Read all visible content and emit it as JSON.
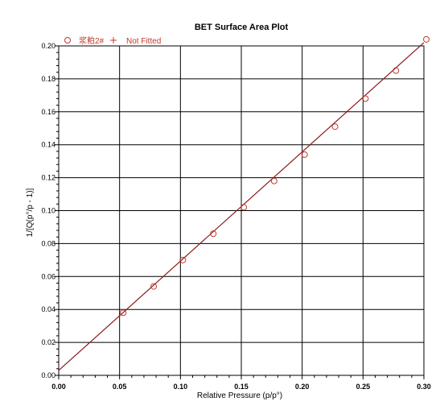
{
  "chart_data": {
    "type": "scatter",
    "title": "BET Surface Area Plot",
    "xlabel": "Relative Pressure (p/p°)",
    "ylabel": "1/[Q(p°/p - 1)]",
    "xlim": [
      0.0,
      0.3
    ],
    "ylim": [
      0.0,
      0.2
    ],
    "xticks": [
      "0.00",
      "0.05",
      "0.10",
      "0.15",
      "0.20",
      "0.25",
      "0.30"
    ],
    "yticks": [
      "0.00",
      "0.02",
      "0.04",
      "0.06",
      "0.08",
      "0.10",
      "0.12",
      "0.14",
      "0.16",
      "0.18",
      "0.20"
    ],
    "grid": true,
    "legend": {
      "placement": "top-left",
      "entries": [
        {
          "name": "浆粕2#",
          "marker": "circle",
          "color": "#c0392b"
        },
        {
          "name": "Not Fitted",
          "marker": "plus",
          "color": "#c0392b"
        }
      ]
    },
    "series": [
      {
        "name": "浆粕2#",
        "x": [
          0.053,
          0.078,
          0.102,
          0.127,
          0.152,
          0.177,
          0.202,
          0.227,
          0.252,
          0.277,
          0.302
        ],
        "y": [
          0.038,
          0.054,
          0.07,
          0.086,
          0.102,
          0.118,
          0.134,
          0.151,
          0.168,
          0.185,
          0.204
        ]
      }
    ],
    "fit_line": {
      "x": [
        0.0,
        0.3
      ],
      "y": [
        0.003,
        0.202
      ],
      "color": "#8b1a1a"
    }
  }
}
